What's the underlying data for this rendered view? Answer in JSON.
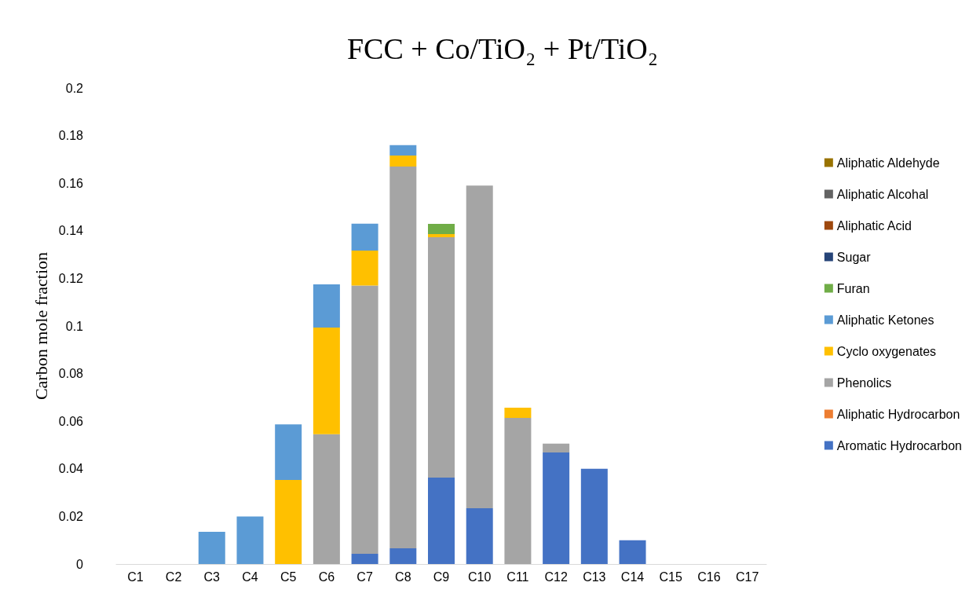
{
  "chart_data": {
    "type": "bar",
    "stacked": true,
    "title": "FCC + Co/TiO₂ + Pt/TiO₂",
    "ylabel": "Carbon mole fraction",
    "categories": [
      "C1",
      "C2",
      "C3",
      "C4",
      "C5",
      "C6",
      "C7",
      "C8",
      "C9",
      "C10",
      "C11",
      "C12",
      "C13",
      "C14",
      "C15",
      "C16",
      "C17"
    ],
    "series": [
      {
        "name": "Aromatic Hydrocarbon",
        "color": "#4472c4",
        "values": [
          0,
          0,
          0,
          0,
          0,
          0,
          0.0043,
          0.0066,
          0.0363,
          0.0234,
          0,
          0.0469,
          0.04,
          0.01,
          0,
          0,
          0
        ]
      },
      {
        "name": "Aliphatic Hydrocarbon",
        "color": "#ed7d31",
        "values": [
          0,
          0,
          0,
          0,
          0,
          0,
          0,
          0,
          0,
          0,
          0,
          0,
          0,
          0,
          0,
          0,
          0
        ]
      },
      {
        "name": "Phenolics",
        "color": "#a5a5a5",
        "values": [
          0,
          0,
          0,
          0,
          0,
          0.0545,
          0.1127,
          0.1604,
          0.101,
          0.1356,
          0.0614,
          0.0037,
          0,
          0,
          0,
          0,
          0
        ]
      },
      {
        "name": "Cyclo oxygenates",
        "color": "#ffc000",
        "values": [
          0,
          0,
          0,
          0,
          0.0353,
          0.0448,
          0.0147,
          0.0046,
          0.0013,
          0,
          0.0043,
          0,
          0,
          0,
          0,
          0,
          0
        ]
      },
      {
        "name": "Aliphatic Ketones",
        "color": "#5b9bd5",
        "values": [
          0,
          0,
          0.0135,
          0.02,
          0.0234,
          0.0182,
          0.0113,
          0.0044,
          0,
          0,
          0,
          0,
          0,
          0,
          0,
          0,
          0
        ]
      },
      {
        "name": "Furan",
        "color": "#70ad47",
        "values": [
          0,
          0,
          0,
          0,
          0,
          0,
          0,
          0,
          0.0043,
          0,
          0,
          0,
          0,
          0,
          0,
          0,
          0
        ]
      },
      {
        "name": "Sugar",
        "color": "#264478",
        "values": [
          0,
          0,
          0,
          0,
          0,
          0,
          0,
          0,
          0,
          0,
          0,
          0,
          0,
          0,
          0,
          0,
          0
        ]
      },
      {
        "name": "Aliphatic Acid",
        "color": "#9e480e",
        "values": [
          0,
          0,
          0,
          0,
          0,
          0,
          0,
          0,
          0,
          0,
          0,
          0,
          0,
          0,
          0,
          0,
          0
        ]
      },
      {
        "name": "Aliphatic Alcohal",
        "color": "#636363",
        "values": [
          0,
          0,
          0,
          0,
          0,
          0,
          0,
          0,
          0,
          0,
          0,
          0,
          0,
          0,
          0,
          0,
          0
        ]
      },
      {
        "name": "Aliphatic Aldehyde",
        "color": "#997300",
        "values": [
          0,
          0,
          0,
          0,
          0,
          0,
          0,
          0,
          0,
          0,
          0,
          0,
          0,
          0,
          0,
          0,
          0
        ]
      }
    ],
    "ylim": [
      0,
      0.2
    ],
    "yticks": [
      0,
      0.02,
      0.04,
      0.06,
      0.08,
      0.1,
      0.12,
      0.14,
      0.16,
      0.18,
      0.2
    ],
    "grid": false,
    "legend": "right"
  }
}
